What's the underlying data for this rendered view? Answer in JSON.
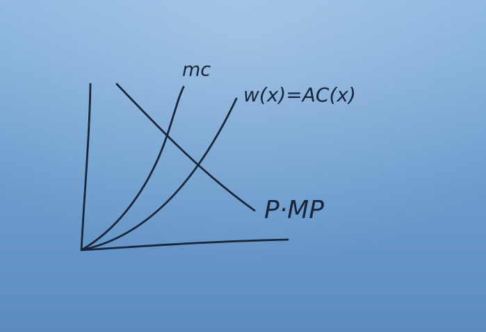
{
  "board": {
    "background_colors": [
      "#8bb6df",
      "#6f9fcf",
      "#5b8cc0"
    ],
    "ink_color": "#17243a"
  },
  "labels": {
    "mc": "mc",
    "wx_ac": "w(x)=AC(x)",
    "p_mp": "P·MP"
  }
}
